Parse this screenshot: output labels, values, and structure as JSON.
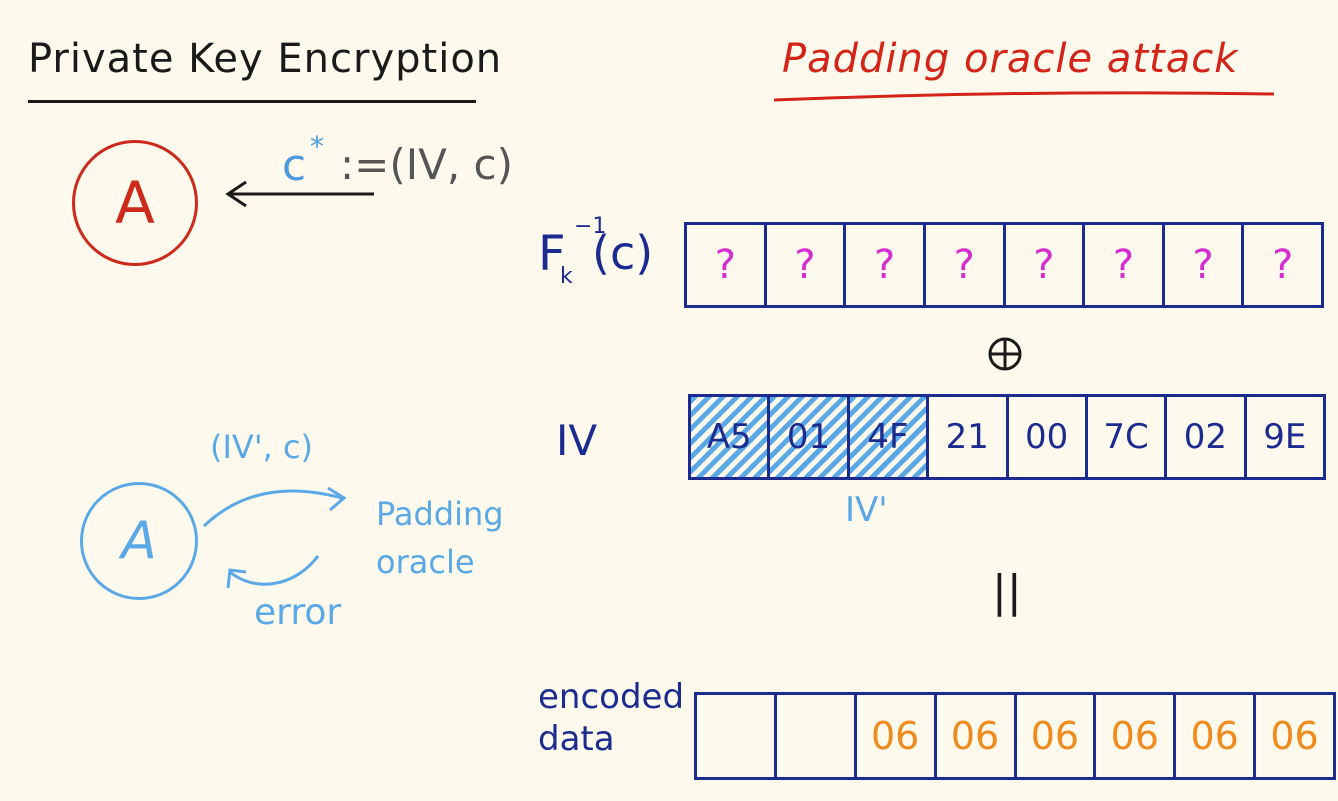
{
  "left": {
    "title": "Private Key Encryption",
    "adversary_top": "A",
    "challenge": {
      "c": "c",
      "star": "*",
      "rest": ":=(IV, c)"
    },
    "adversary_bottom": "A",
    "query": "(IV', c)",
    "oracle_line1": "Padding",
    "oracle_line2": "oracle",
    "error": "error"
  },
  "right": {
    "title": "Padding oracle attack",
    "fk": {
      "F": "F",
      "sub": "k",
      "sup": "−1",
      "arg": "(c)"
    },
    "fk_cells": [
      "?",
      "?",
      "?",
      "?",
      "?",
      "?",
      "?",
      "?"
    ],
    "iv_label": "IV",
    "iv_cells": [
      "A5",
      "01",
      "4F",
      "21",
      "00",
      "7C",
      "02",
      "9E"
    ],
    "iv_prime": "IV'",
    "equals": "||",
    "encoded_label_1": "encoded",
    "encoded_label_2": "data",
    "encoded_cells": [
      "",
      "",
      "06",
      "06",
      "06",
      "06",
      "06",
      "06"
    ]
  },
  "colors": {
    "red": "#d42418",
    "blue_ink": "#1c2b90",
    "light_blue": "#5aa9e6",
    "magenta": "#d62cd0",
    "orange": "#ef8a1c"
  }
}
